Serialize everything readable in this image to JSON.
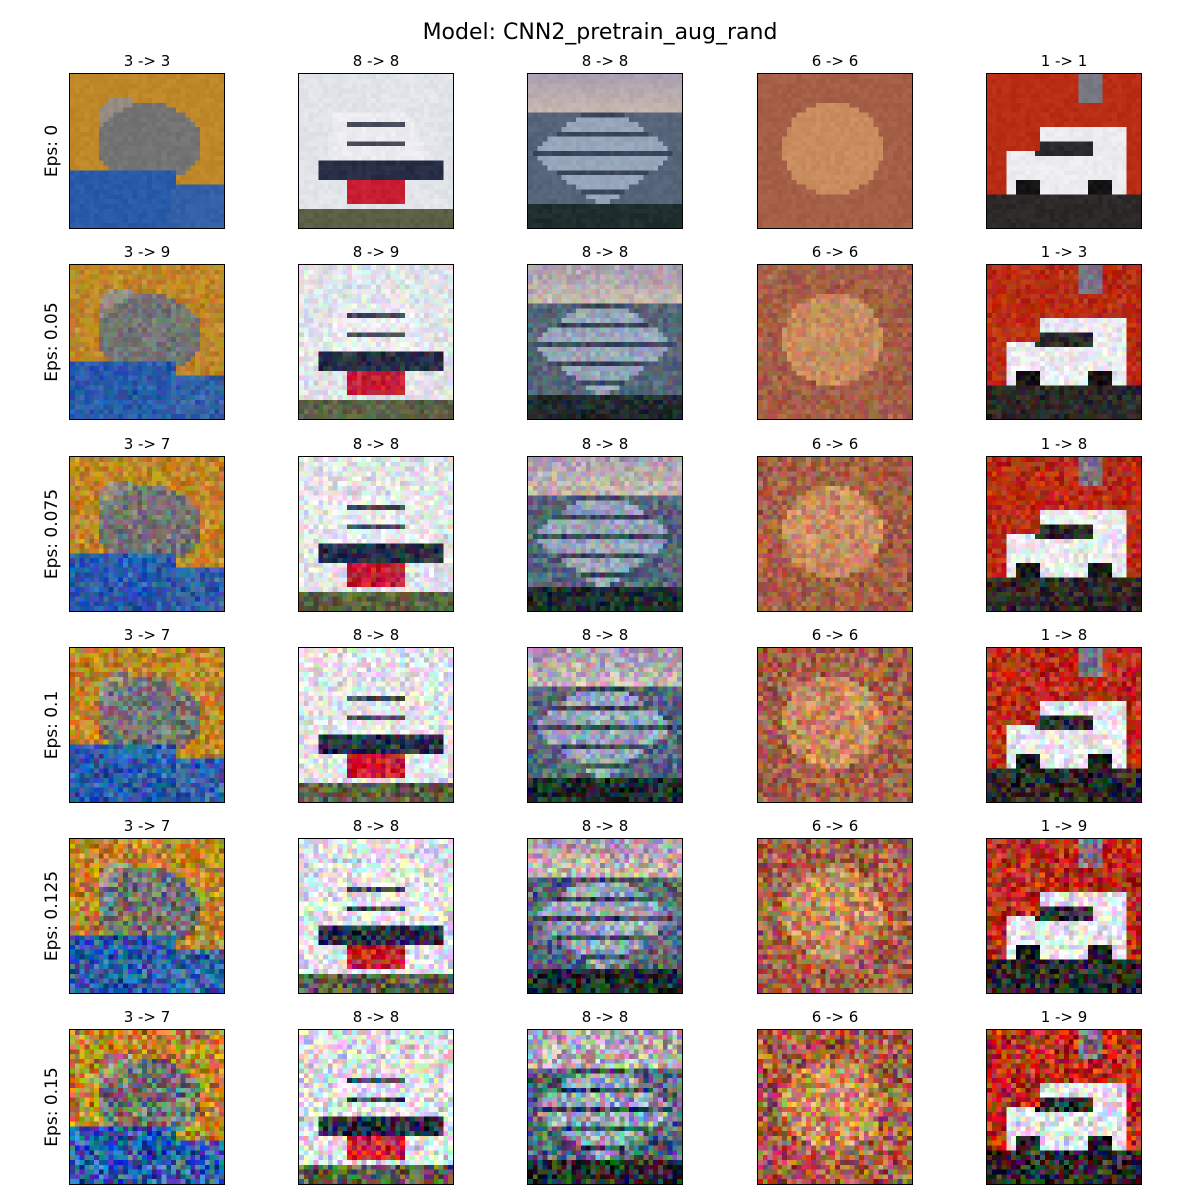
{
  "title": "Model: CNN2_pretrain_aug_rand",
  "row_labels": [
    "Eps: 0",
    "Eps: 0.05",
    "Eps: 0.075",
    "Eps: 0.1",
    "Eps: 0.125",
    "Eps: 0.15"
  ],
  "rows": [
    {
      "eps": 0,
      "cells": [
        {
          "label": "3 -> 3",
          "subject": "cat"
        },
        {
          "label": "8 -> 8",
          "subject": "white ship"
        },
        {
          "label": "8 -> 8",
          "subject": "boat in harbor"
        },
        {
          "label": "6 -> 6",
          "subject": "frog"
        },
        {
          "label": "1 -> 1",
          "subject": "white car"
        }
      ]
    },
    {
      "eps": 0.05,
      "cells": [
        {
          "label": "3 -> 9",
          "subject": "cat"
        },
        {
          "label": "8 -> 9",
          "subject": "white ship"
        },
        {
          "label": "8 -> 8",
          "subject": "boat in harbor"
        },
        {
          "label": "6 -> 6",
          "subject": "frog"
        },
        {
          "label": "1 -> 3",
          "subject": "white car"
        }
      ]
    },
    {
      "eps": 0.075,
      "cells": [
        {
          "label": "3 -> 7",
          "subject": "cat"
        },
        {
          "label": "8 -> 8",
          "subject": "white ship"
        },
        {
          "label": "8 -> 8",
          "subject": "boat in harbor"
        },
        {
          "label": "6 -> 6",
          "subject": "frog"
        },
        {
          "label": "1 -> 8",
          "subject": "white car"
        }
      ]
    },
    {
      "eps": 0.1,
      "cells": [
        {
          "label": "3 -> 7",
          "subject": "cat"
        },
        {
          "label": "8 -> 8",
          "subject": "white ship"
        },
        {
          "label": "8 -> 8",
          "subject": "boat in harbor"
        },
        {
          "label": "6 -> 6",
          "subject": "frog"
        },
        {
          "label": "1 -> 8",
          "subject": "white car"
        }
      ]
    },
    {
      "eps": 0.125,
      "cells": [
        {
          "label": "3 -> 7",
          "subject": "cat"
        },
        {
          "label": "8 -> 8",
          "subject": "white ship"
        },
        {
          "label": "8 -> 8",
          "subject": "boat in harbor"
        },
        {
          "label": "6 -> 6",
          "subject": "frog"
        },
        {
          "label": "1 -> 9",
          "subject": "white car"
        }
      ]
    },
    {
      "eps": 0.15,
      "cells": [
        {
          "label": "3 -> 7",
          "subject": "cat"
        },
        {
          "label": "8 -> 8",
          "subject": "white ship"
        },
        {
          "label": "8 -> 8",
          "subject": "boat in harbor"
        },
        {
          "label": "6 -> 6",
          "subject": "frog"
        },
        {
          "label": "1 -> 9",
          "subject": "white car"
        }
      ]
    }
  ]
}
